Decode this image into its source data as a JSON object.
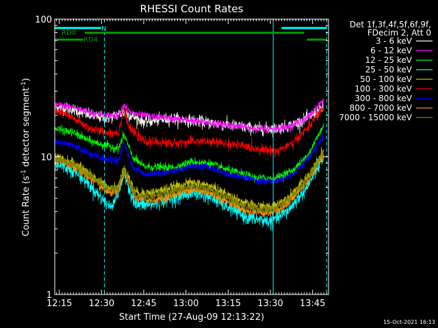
{
  "chart_data": {
    "type": "line",
    "title": "RHESSI Count Rates",
    "xlabel": "Start Time (27-Aug-09 12:13:22)",
    "ylabel": "Count Rate (s",
    "ylabel_sup": "-1",
    "ylabel_rest": " detector segment",
    "ylabel_sup2": "-1",
    "ylabel_end": ")",
    "y_scale": "log",
    "ylim": [
      1,
      100
    ],
    "xlim": [
      "12:13:22",
      "13:50:40"
    ],
    "x_ticks": [
      "12:15",
      "12:30",
      "12:45",
      "13:00",
      "13:15",
      "13:30",
      "13:45"
    ],
    "y_ticks": [
      "1",
      "10",
      "100"
    ],
    "grid": false,
    "legend_header": [
      "Det 1f,3f,4f,5f,6f,9f,",
      "FDecim 2, Att 0"
    ],
    "legend_position": "right",
    "annotations": {
      "flags": [
        {
          "label": "N",
          "color": "#00ffff",
          "segments": [
            [
              "12:13:22",
              "12:30:00"
            ],
            [
              "13:34:00",
              "13:50:00"
            ]
          ]
        },
        {
          "label": "RD0",
          "color": "#00a000",
          "segments": [
            [
              "12:24:00",
              "13:42:00"
            ]
          ]
        },
        {
          "label": "RD4",
          "color": "#00a000",
          "segments": [
            [
              "12:13:22",
              "12:24:00"
            ],
            [
              "13:43:00",
              "13:50:00"
            ]
          ]
        }
      ],
      "vertical_lines": [
        {
          "time": "12:31:00",
          "style": "dashed",
          "color": "#00ffff"
        },
        {
          "time": "13:31:00",
          "style": "solid",
          "color": "#00ffff"
        },
        {
          "time": "13:50:00",
          "style": "dashed",
          "color": "#00ffff"
        }
      ]
    },
    "series": [
      {
        "name": "3 - 6 keV",
        "color": "#ffffff",
        "noise": 0.1,
        "points": [
          [
            "12:13:22",
            23
          ],
          [
            "12:20",
            22
          ],
          [
            "12:26",
            20
          ],
          [
            "12:32",
            19
          ],
          [
            "12:38",
            21
          ],
          [
            "12:45",
            18
          ],
          [
            "12:55",
            19
          ],
          [
            "13:05",
            18
          ],
          [
            "13:15",
            17
          ],
          [
            "13:25",
            16
          ],
          [
            "13:32",
            16
          ],
          [
            "13:38",
            17
          ],
          [
            "13:43",
            19
          ],
          [
            "13:49",
            23
          ]
        ]
      },
      {
        "name": "6 - 12 keV",
        "color": "#ff00ff",
        "noise": 0.06,
        "points": [
          [
            "12:13:22",
            24
          ],
          [
            "12:20",
            23
          ],
          [
            "12:26",
            21
          ],
          [
            "12:32",
            20
          ],
          [
            "12:36",
            20
          ],
          [
            "12:38",
            24
          ],
          [
            "12:40",
            21
          ],
          [
            "12:45",
            20
          ],
          [
            "12:55",
            19
          ],
          [
            "13:05",
            18
          ],
          [
            "13:15",
            17
          ],
          [
            "13:25",
            16
          ],
          [
            "13:32",
            16
          ],
          [
            "13:38",
            17
          ],
          [
            "13:43",
            19
          ],
          [
            "13:49",
            26
          ]
        ]
      },
      {
        "name": "12 - 25 keV",
        "color": "#00ff00",
        "noise": 0.07,
        "points": [
          [
            "12:13:22",
            16
          ],
          [
            "12:20",
            15
          ],
          [
            "12:26",
            13
          ],
          [
            "12:32",
            12
          ],
          [
            "12:36",
            11.5
          ],
          [
            "12:38",
            14.5
          ],
          [
            "12:41",
            10
          ],
          [
            "12:45",
            8.5
          ],
          [
            "12:55",
            8.3
          ],
          [
            "13:02",
            9.2
          ],
          [
            "13:08",
            9
          ],
          [
            "13:15",
            8
          ],
          [
            "13:25",
            7
          ],
          [
            "13:32",
            7
          ],
          [
            "13:38",
            8
          ],
          [
            "13:43",
            10
          ],
          [
            "13:49",
            17
          ]
        ]
      },
      {
        "name": "25 - 50 keV",
        "color": "#00ffff",
        "noise": 0.12,
        "points": [
          [
            "12:13:22",
            9
          ],
          [
            "12:20",
            8
          ],
          [
            "12:25",
            6.5
          ],
          [
            "12:30",
            5
          ],
          [
            "12:33",
            4.3
          ],
          [
            "12:36",
            5.5
          ],
          [
            "12:38",
            7.5
          ],
          [
            "12:42",
            4.5
          ],
          [
            "12:48",
            4.5
          ],
          [
            "12:55",
            5
          ],
          [
            "13:02",
            5.5
          ],
          [
            "13:08",
            5.2
          ],
          [
            "13:15",
            4.3
          ],
          [
            "13:22",
            3.6
          ],
          [
            "13:30",
            3.4
          ],
          [
            "13:36",
            4
          ],
          [
            "13:43",
            6
          ],
          [
            "13:49",
            10
          ]
        ]
      },
      {
        "name": "50 - 100 keV",
        "color": "#c0c000",
        "noise": 0.08,
        "points": [
          [
            "12:13:22",
            10
          ],
          [
            "12:20",
            9
          ],
          [
            "12:26",
            7.5
          ],
          [
            "12:32",
            6
          ],
          [
            "12:36",
            6
          ],
          [
            "12:38",
            8.5
          ],
          [
            "12:42",
            5.5
          ],
          [
            "12:48",
            5.5
          ],
          [
            "12:55",
            6
          ],
          [
            "13:02",
            6.5
          ],
          [
            "13:08",
            6.2
          ],
          [
            "13:15",
            5.3
          ],
          [
            "13:22",
            4.5
          ],
          [
            "13:30",
            4.3
          ],
          [
            "13:36",
            5
          ],
          [
            "13:43",
            7
          ],
          [
            "13:49",
            11
          ]
        ]
      },
      {
        "name": "100 - 300 keV",
        "color": "#ff0000",
        "noise": 0.08,
        "points": [
          [
            "12:13:22",
            22
          ],
          [
            "12:20",
            19
          ],
          [
            "12:26",
            16
          ],
          [
            "12:32",
            15
          ],
          [
            "12:36",
            15
          ],
          [
            "12:38",
            22
          ],
          [
            "12:40",
            16
          ],
          [
            "12:45",
            13
          ],
          [
            "12:55",
            12.5
          ],
          [
            "13:05",
            13
          ],
          [
            "13:15",
            12.5
          ],
          [
            "13:25",
            11.5
          ],
          [
            "13:32",
            11
          ],
          [
            "13:38",
            12.5
          ],
          [
            "13:43",
            16
          ],
          [
            "13:49",
            23
          ]
        ]
      },
      {
        "name": "300 - 800 keV",
        "color": "#0000ff",
        "noise": 0.06,
        "points": [
          [
            "12:13:22",
            13
          ],
          [
            "12:20",
            12
          ],
          [
            "12:26",
            10.5
          ],
          [
            "12:32",
            9.5
          ],
          [
            "12:36",
            9.3
          ],
          [
            "12:38",
            12.5
          ],
          [
            "12:41",
            8.5
          ],
          [
            "12:45",
            7.5
          ],
          [
            "12:55",
            7.8
          ],
          [
            "13:02",
            8.6
          ],
          [
            "13:08",
            8.4
          ],
          [
            "13:15",
            7.5
          ],
          [
            "13:25",
            6.8
          ],
          [
            "13:32",
            6.6
          ],
          [
            "13:38",
            7.5
          ],
          [
            "13:43",
            9.5
          ],
          [
            "13:49",
            14
          ]
        ]
      },
      {
        "name": "800 - 7000 keV",
        "color": "#ff8c00",
        "noise": 0.07,
        "points": [
          [
            "12:13:22",
            9.5
          ],
          [
            "12:20",
            8.5
          ],
          [
            "12:26",
            7
          ],
          [
            "12:32",
            5.5
          ],
          [
            "12:36",
            5.5
          ],
          [
            "12:38",
            8
          ],
          [
            "12:42",
            5
          ],
          [
            "12:48",
            4.8
          ],
          [
            "12:55",
            5.2
          ],
          [
            "13:02",
            5.8
          ],
          [
            "13:08",
            5.5
          ],
          [
            "13:15",
            4.7
          ],
          [
            "13:22",
            4
          ],
          [
            "13:30",
            3.9
          ],
          [
            "13:36",
            4.5
          ],
          [
            "13:43",
            6.5
          ],
          [
            "13:49",
            10.5
          ]
        ]
      },
      {
        "name": "7000 - 15000 keV",
        "color": "#808000",
        "noise": 0.07,
        "points": [
          [
            "12:13:22",
            9.8
          ],
          [
            "12:20",
            8.8
          ],
          [
            "12:26",
            7.3
          ],
          [
            "12:32",
            5.8
          ],
          [
            "12:36",
            5.8
          ],
          [
            "12:38",
            8.2
          ],
          [
            "12:42",
            5.2
          ],
          [
            "12:48",
            5.1
          ],
          [
            "12:55",
            5.6
          ],
          [
            "13:02",
            6.1
          ],
          [
            "13:08",
            5.8
          ],
          [
            "13:15",
            5
          ],
          [
            "13:22",
            4.3
          ],
          [
            "13:30",
            4.1
          ],
          [
            "13:36",
            4.8
          ],
          [
            "13:43",
            6.8
          ],
          [
            "13:49",
            10.8
          ]
        ]
      }
    ]
  },
  "footer": {
    "timestamp": "15-Oct-2021 16:13"
  }
}
